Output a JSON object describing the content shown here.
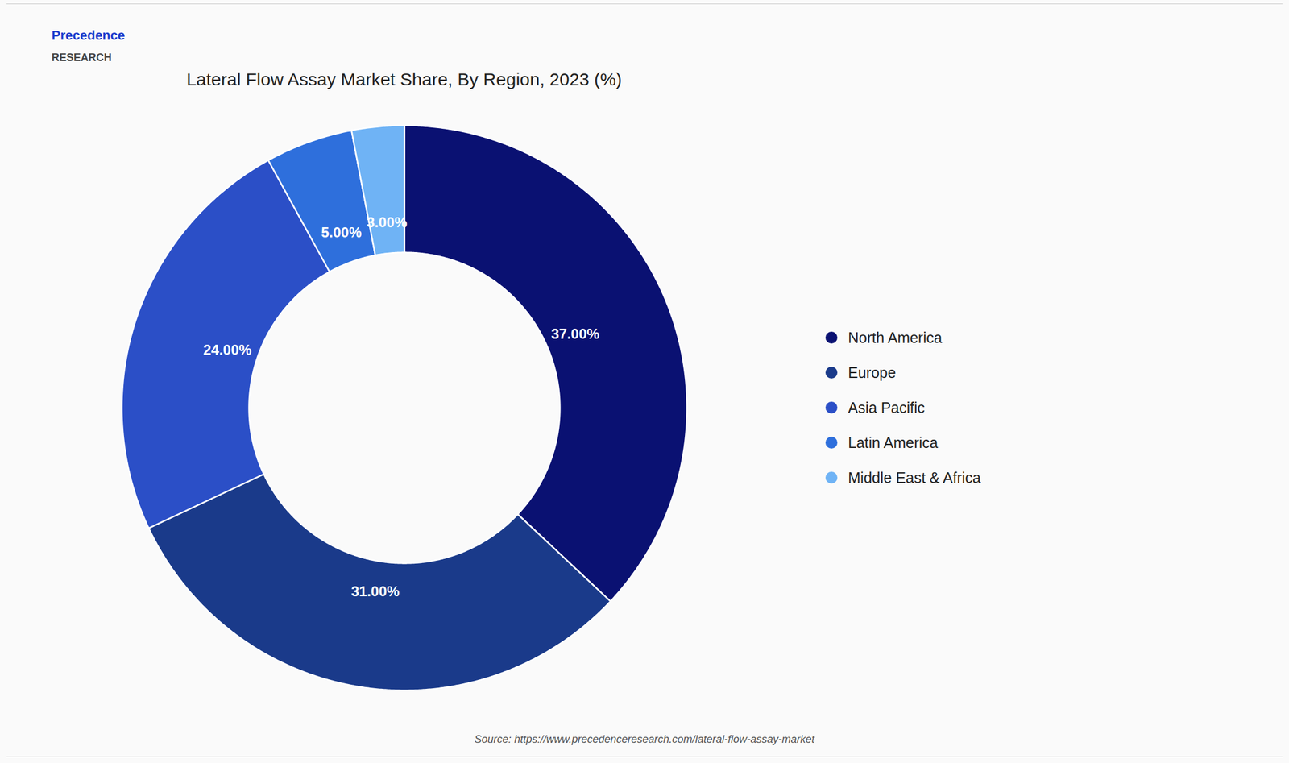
{
  "chart_data": {
    "type": "donut",
    "title": "Lateral Flow Assay Market Share, By Region, 2023 (%)",
    "categories": [
      "North America",
      "Europe",
      "Asia Pacific",
      "Latin America",
      "Middle East & Africa"
    ],
    "values": [
      37.0,
      31.0,
      24.0,
      5.0,
      3.0
    ],
    "value_labels": [
      "37.00%",
      "31.00%",
      "24.00%",
      "5.00%",
      "3.00%"
    ],
    "colors": [
      "#0a1172",
      "#1a3a8a",
      "#2b4fc7",
      "#2e6fdc",
      "#6fb3f5"
    ],
    "data_labels": true,
    "legend": "right",
    "annotations": [
      "Precedence",
      "RESEARCH",
      "Source: https://www.precedenceresearch.com/lateral-flow-assay-market"
    ]
  }
}
